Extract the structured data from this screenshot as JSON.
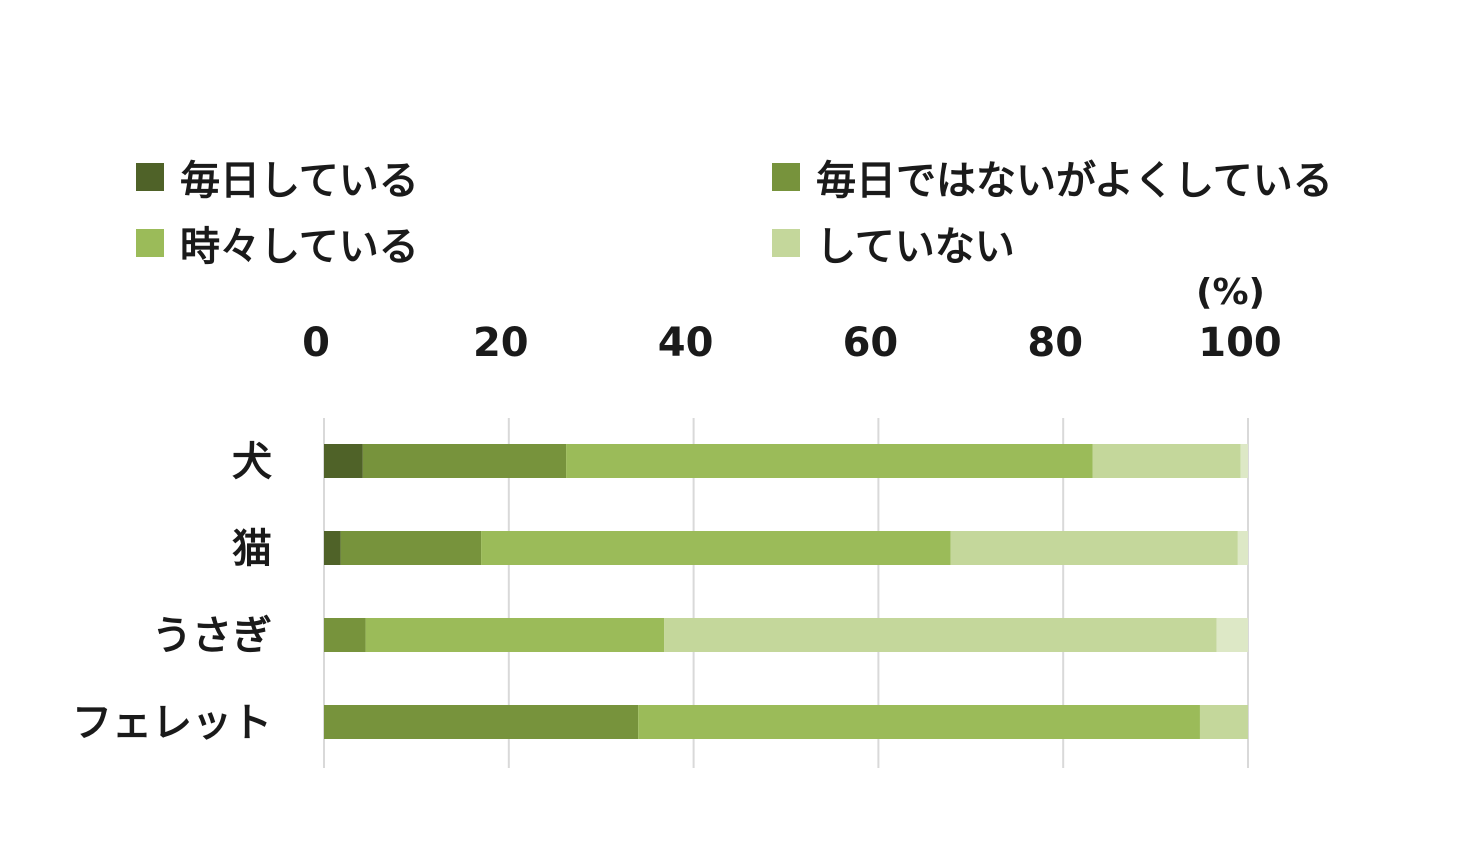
{
  "chart_data": {
    "type": "bar",
    "orientation": "horizontal",
    "stacked": true,
    "unit": "(%)",
    "categories": [
      "犬",
      "猫",
      "うさぎ",
      "フェレット"
    ],
    "series": [
      {
        "name": "毎日している",
        "color": "#4f6228",
        "values": [
          4.2,
          1.8,
          0.0,
          0.0
        ]
      },
      {
        "name": "毎日ではないがよくしている",
        "color": "#77933c",
        "values": [
          22.0,
          15.2,
          4.5,
          34.0
        ]
      },
      {
        "name": "時々している",
        "color": "#9bbb59",
        "values": [
          57.0,
          50.8,
          32.3,
          60.8
        ]
      },
      {
        "name": "していない",
        "color": "#c4d79b",
        "values": [
          16.0,
          31.1,
          59.8,
          5.2
        ]
      },
      {
        "name": "",
        "color": "#dde8c6",
        "values": [
          0.8,
          1.1,
          3.4,
          0.0
        ]
      }
    ],
    "xlim": [
      0,
      100
    ],
    "xticks": [
      0,
      20,
      40,
      60,
      80,
      100
    ],
    "grid": true,
    "legend_position": "top"
  }
}
